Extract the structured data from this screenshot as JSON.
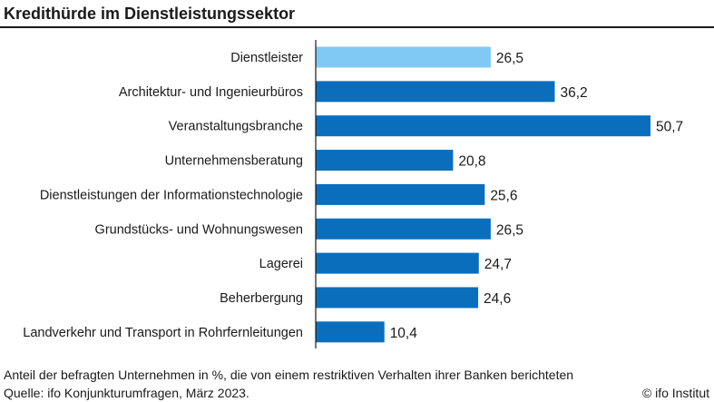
{
  "chart_data": {
    "type": "bar",
    "orientation": "horizontal",
    "title": "Kredithürde im Dienstleistungssektor",
    "categories": [
      "Dienstleister",
      "Architektur- und Ingenieurbüros",
      "Veranstaltungsbranche",
      "Unternehmensberatung",
      "Dienstleistungen der Informationstechnologie",
      "Grundstücks- und Wohnungswesen",
      "Lagerei",
      "Beherbergung",
      "Landverkehr und Transport in Rohrfernleitungen"
    ],
    "values": [
      26.5,
      36.2,
      50.7,
      20.8,
      25.6,
      26.5,
      24.7,
      24.6,
      10.4
    ],
    "value_labels": [
      "26,5",
      "36,2",
      "50,7",
      "20,8",
      "25,6",
      "26,5",
      "24,7",
      "24,6",
      "10,4"
    ],
    "highlight_index": 0,
    "xlim": [
      0,
      50.7
    ],
    "xlabel": "",
    "ylabel": "",
    "grid": false,
    "legend": "none",
    "colors": {
      "bar": "#0a6ebd",
      "highlight": "#80c9f4",
      "axis": "#1a1a1a"
    }
  },
  "footer": {
    "note": "Anteil der befragten Unternehmen in %, die von einem restriktiven Verhalten ihrer Banken berichteten",
    "source": "Quelle: ifo Konjunkturumfragen, März 2023.",
    "credit": "© ifo Institut"
  }
}
